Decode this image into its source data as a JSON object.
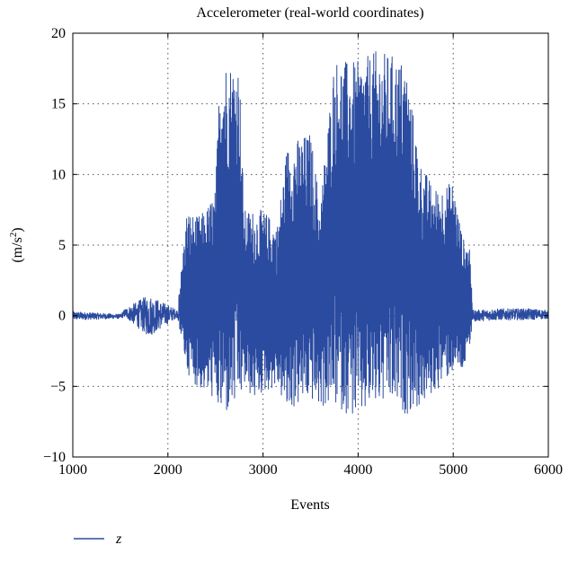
{
  "chart_data": {
    "type": "line",
    "title": "Accelerometer (real-world coordinates)",
    "xlabel": "Events",
    "ylabel_main": "(m/s",
    "ylabel_sup": "2",
    "ylabel_close": ")",
    "xlim": [
      1000,
      6000
    ],
    "ylim": [
      -10,
      20
    ],
    "xticks": [
      1000,
      2000,
      3000,
      4000,
      5000,
      6000
    ],
    "yticks": [
      -10,
      -5,
      0,
      5,
      10,
      15,
      20
    ],
    "grid": true,
    "legend_position": "bottom-left",
    "series": [
      {
        "name": "z",
        "color": "#2b4ba0",
        "envelope": [
          {
            "x": 1000,
            "min": -0.3,
            "max": 0.3
          },
          {
            "x": 1500,
            "min": -0.2,
            "max": 0.1
          },
          {
            "x": 1550,
            "min": -0.1,
            "max": 0.5
          },
          {
            "x": 1800,
            "min": -1.5,
            "max": 1.5
          },
          {
            "x": 2100,
            "min": -0.1,
            "max": 0.4
          },
          {
            "x": 2200,
            "min": -4.0,
            "max": 7.5
          },
          {
            "x": 2300,
            "min": -5.0,
            "max": 7.0
          },
          {
            "x": 2400,
            "min": -5.5,
            "max": 7.5
          },
          {
            "x": 2500,
            "min": -6.0,
            "max": 9.0
          },
          {
            "x": 2550,
            "min": -7.5,
            "max": 18.3
          },
          {
            "x": 2650,
            "min": -7.0,
            "max": 18.0
          },
          {
            "x": 2750,
            "min": -6.5,
            "max": 18.0
          },
          {
            "x": 2800,
            "min": -5.0,
            "max": 7.5
          },
          {
            "x": 2900,
            "min": -6.0,
            "max": 7.5
          },
          {
            "x": 3000,
            "min": -5.5,
            "max": 7.5
          },
          {
            "x": 3150,
            "min": -5.0,
            "max": 6.5
          },
          {
            "x": 3250,
            "min": -7.0,
            "max": 12.0
          },
          {
            "x": 3350,
            "min": -6.5,
            "max": 12.5
          },
          {
            "x": 3500,
            "min": -6.0,
            "max": 13.0
          },
          {
            "x": 3600,
            "min": -6.5,
            "max": 8.0
          },
          {
            "x": 3750,
            "min": -6.5,
            "max": 18.3
          },
          {
            "x": 3900,
            "min": -7.0,
            "max": 18.0
          },
          {
            "x": 4000,
            "min": -7.5,
            "max": 18.0
          },
          {
            "x": 4200,
            "min": -6.5,
            "max": 18.8
          },
          {
            "x": 4350,
            "min": -6.5,
            "max": 18.5
          },
          {
            "x": 4500,
            "min": -7.0,
            "max": 18.0
          },
          {
            "x": 4650,
            "min": -6.5,
            "max": 11.0
          },
          {
            "x": 4800,
            "min": -5.5,
            "max": 9.0
          },
          {
            "x": 5000,
            "min": -4.0,
            "max": 9.5
          },
          {
            "x": 5100,
            "min": -4.0,
            "max": 5.5
          },
          {
            "x": 5180,
            "min": -2.5,
            "max": 5.0
          },
          {
            "x": 5200,
            "min": -0.4,
            "max": 0.4
          },
          {
            "x": 5500,
            "min": -0.3,
            "max": 0.5
          },
          {
            "x": 5800,
            "min": -0.3,
            "max": 0.5
          },
          {
            "x": 6000,
            "min": -0.2,
            "max": 0.4
          }
        ]
      }
    ]
  }
}
